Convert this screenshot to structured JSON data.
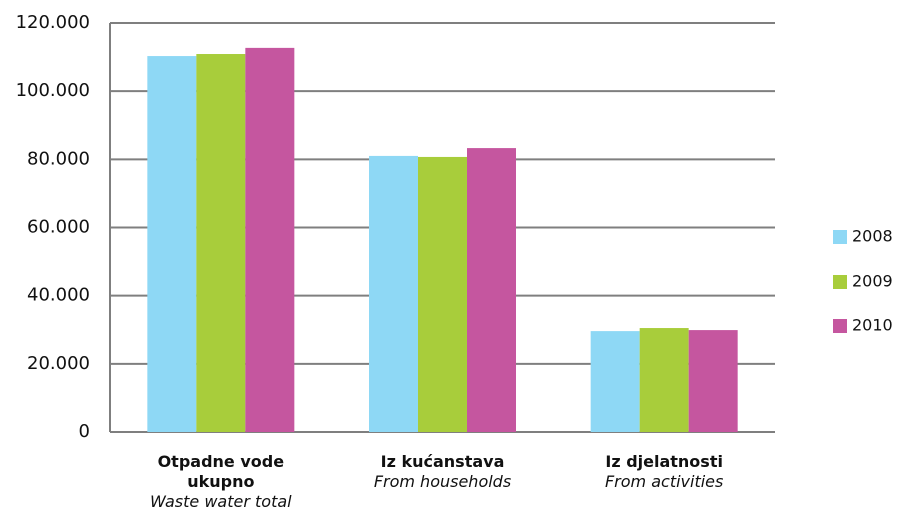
{
  "chart_data": {
    "type": "bar",
    "categories": [
      "Otpadne vode ukupno",
      "Iz kućanstava",
      "Iz djelatnosti"
    ],
    "categories_en": [
      "Waste water total",
      "From households",
      "From activities"
    ],
    "series": [
      {
        "name": "2008",
        "color": "#8ed8f5",
        "values": [
          110300,
          81000,
          29600
        ]
      },
      {
        "name": "2009",
        "color": "#a8cd3b",
        "values": [
          110900,
          80700,
          30500
        ]
      },
      {
        "name": "2010",
        "color": "#c5569f",
        "values": [
          112700,
          83300,
          29900
        ]
      }
    ],
    "ylim": [
      0,
      120000
    ],
    "yticks": [
      0,
      {
        "value": 20000,
        "label": "20.000"
      },
      {
        "value": 40000,
        "label": "40.000"
      },
      {
        "value": 60000,
        "label": "60.000"
      },
      {
        "value": 80000,
        "label": "80.000"
      },
      {
        "value": 100000,
        "label": "100.000"
      },
      {
        "value": 120000,
        "label": "120.000"
      }
    ],
    "grid": true,
    "legend": "right"
  }
}
